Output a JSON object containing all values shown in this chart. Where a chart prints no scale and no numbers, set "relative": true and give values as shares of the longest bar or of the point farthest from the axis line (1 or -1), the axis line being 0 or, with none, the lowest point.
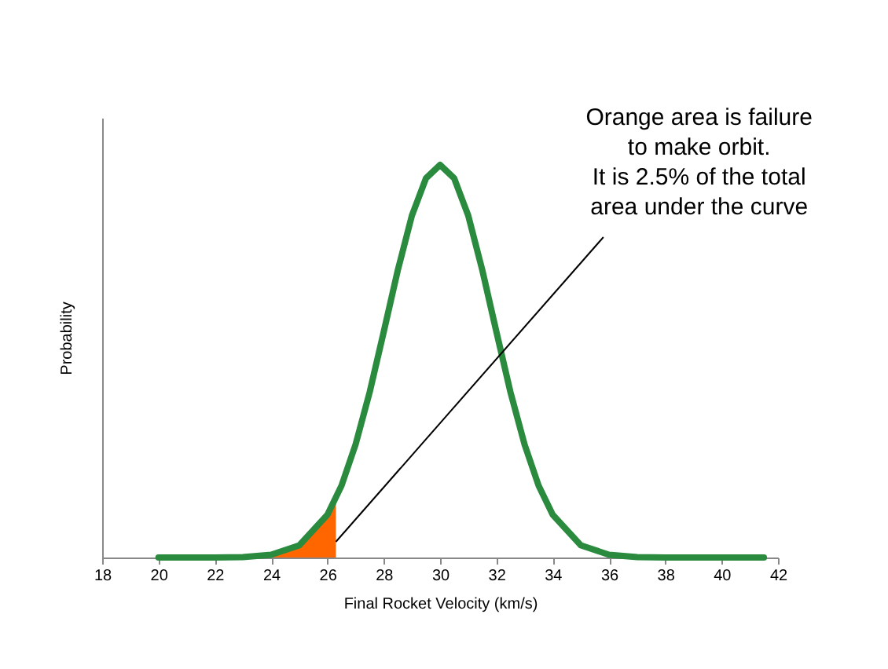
{
  "chart_data": {
    "type": "line",
    "xlabel": "Final Rocket Velocity (km/s)",
    "ylabel": "Probability",
    "relative": true,
    "xlim": [
      18,
      42
    ],
    "xticks": [
      18,
      20,
      22,
      24,
      26,
      28,
      30,
      32,
      34,
      36,
      38,
      40,
      42
    ],
    "grid": false,
    "marker": "none",
    "line_style": "solid",
    "x": [
      20,
      22,
      23,
      24,
      25,
      26,
      26.5,
      27,
      27.5,
      28,
      28.5,
      29,
      29.5,
      30,
      30.5,
      31,
      31.5,
      32,
      32.5,
      33,
      33.5,
      34,
      35,
      36,
      37,
      38,
      41.5
    ],
    "series": [
      {
        "type": "line",
        "color": "#2a8a3e",
        "values": [
          0,
          0,
          0.001,
          0.007,
          0.031,
          0.109,
          0.183,
          0.288,
          0.421,
          0.575,
          0.732,
          0.871,
          0.966,
          1,
          0.966,
          0.871,
          0.732,
          0.575,
          0.421,
          0.288,
          0.183,
          0.109,
          0.031,
          0.007,
          0.001,
          0,
          0
        ]
      },
      {
        "type": "area",
        "color": "#ff6600",
        "x": [
          24,
          24.5,
          25,
          25.5,
          26,
          26.3
        ],
        "values": [
          0.007,
          0.015,
          0.031,
          0.061,
          0.109,
          0.15
        ]
      }
    ],
    "annotations": [
      {
        "text": "Orange area is failure\nto make orbit.\nIt is 2.5% of the total\narea under the curve",
        "x": 26.3,
        "y": 0.04
      }
    ]
  }
}
